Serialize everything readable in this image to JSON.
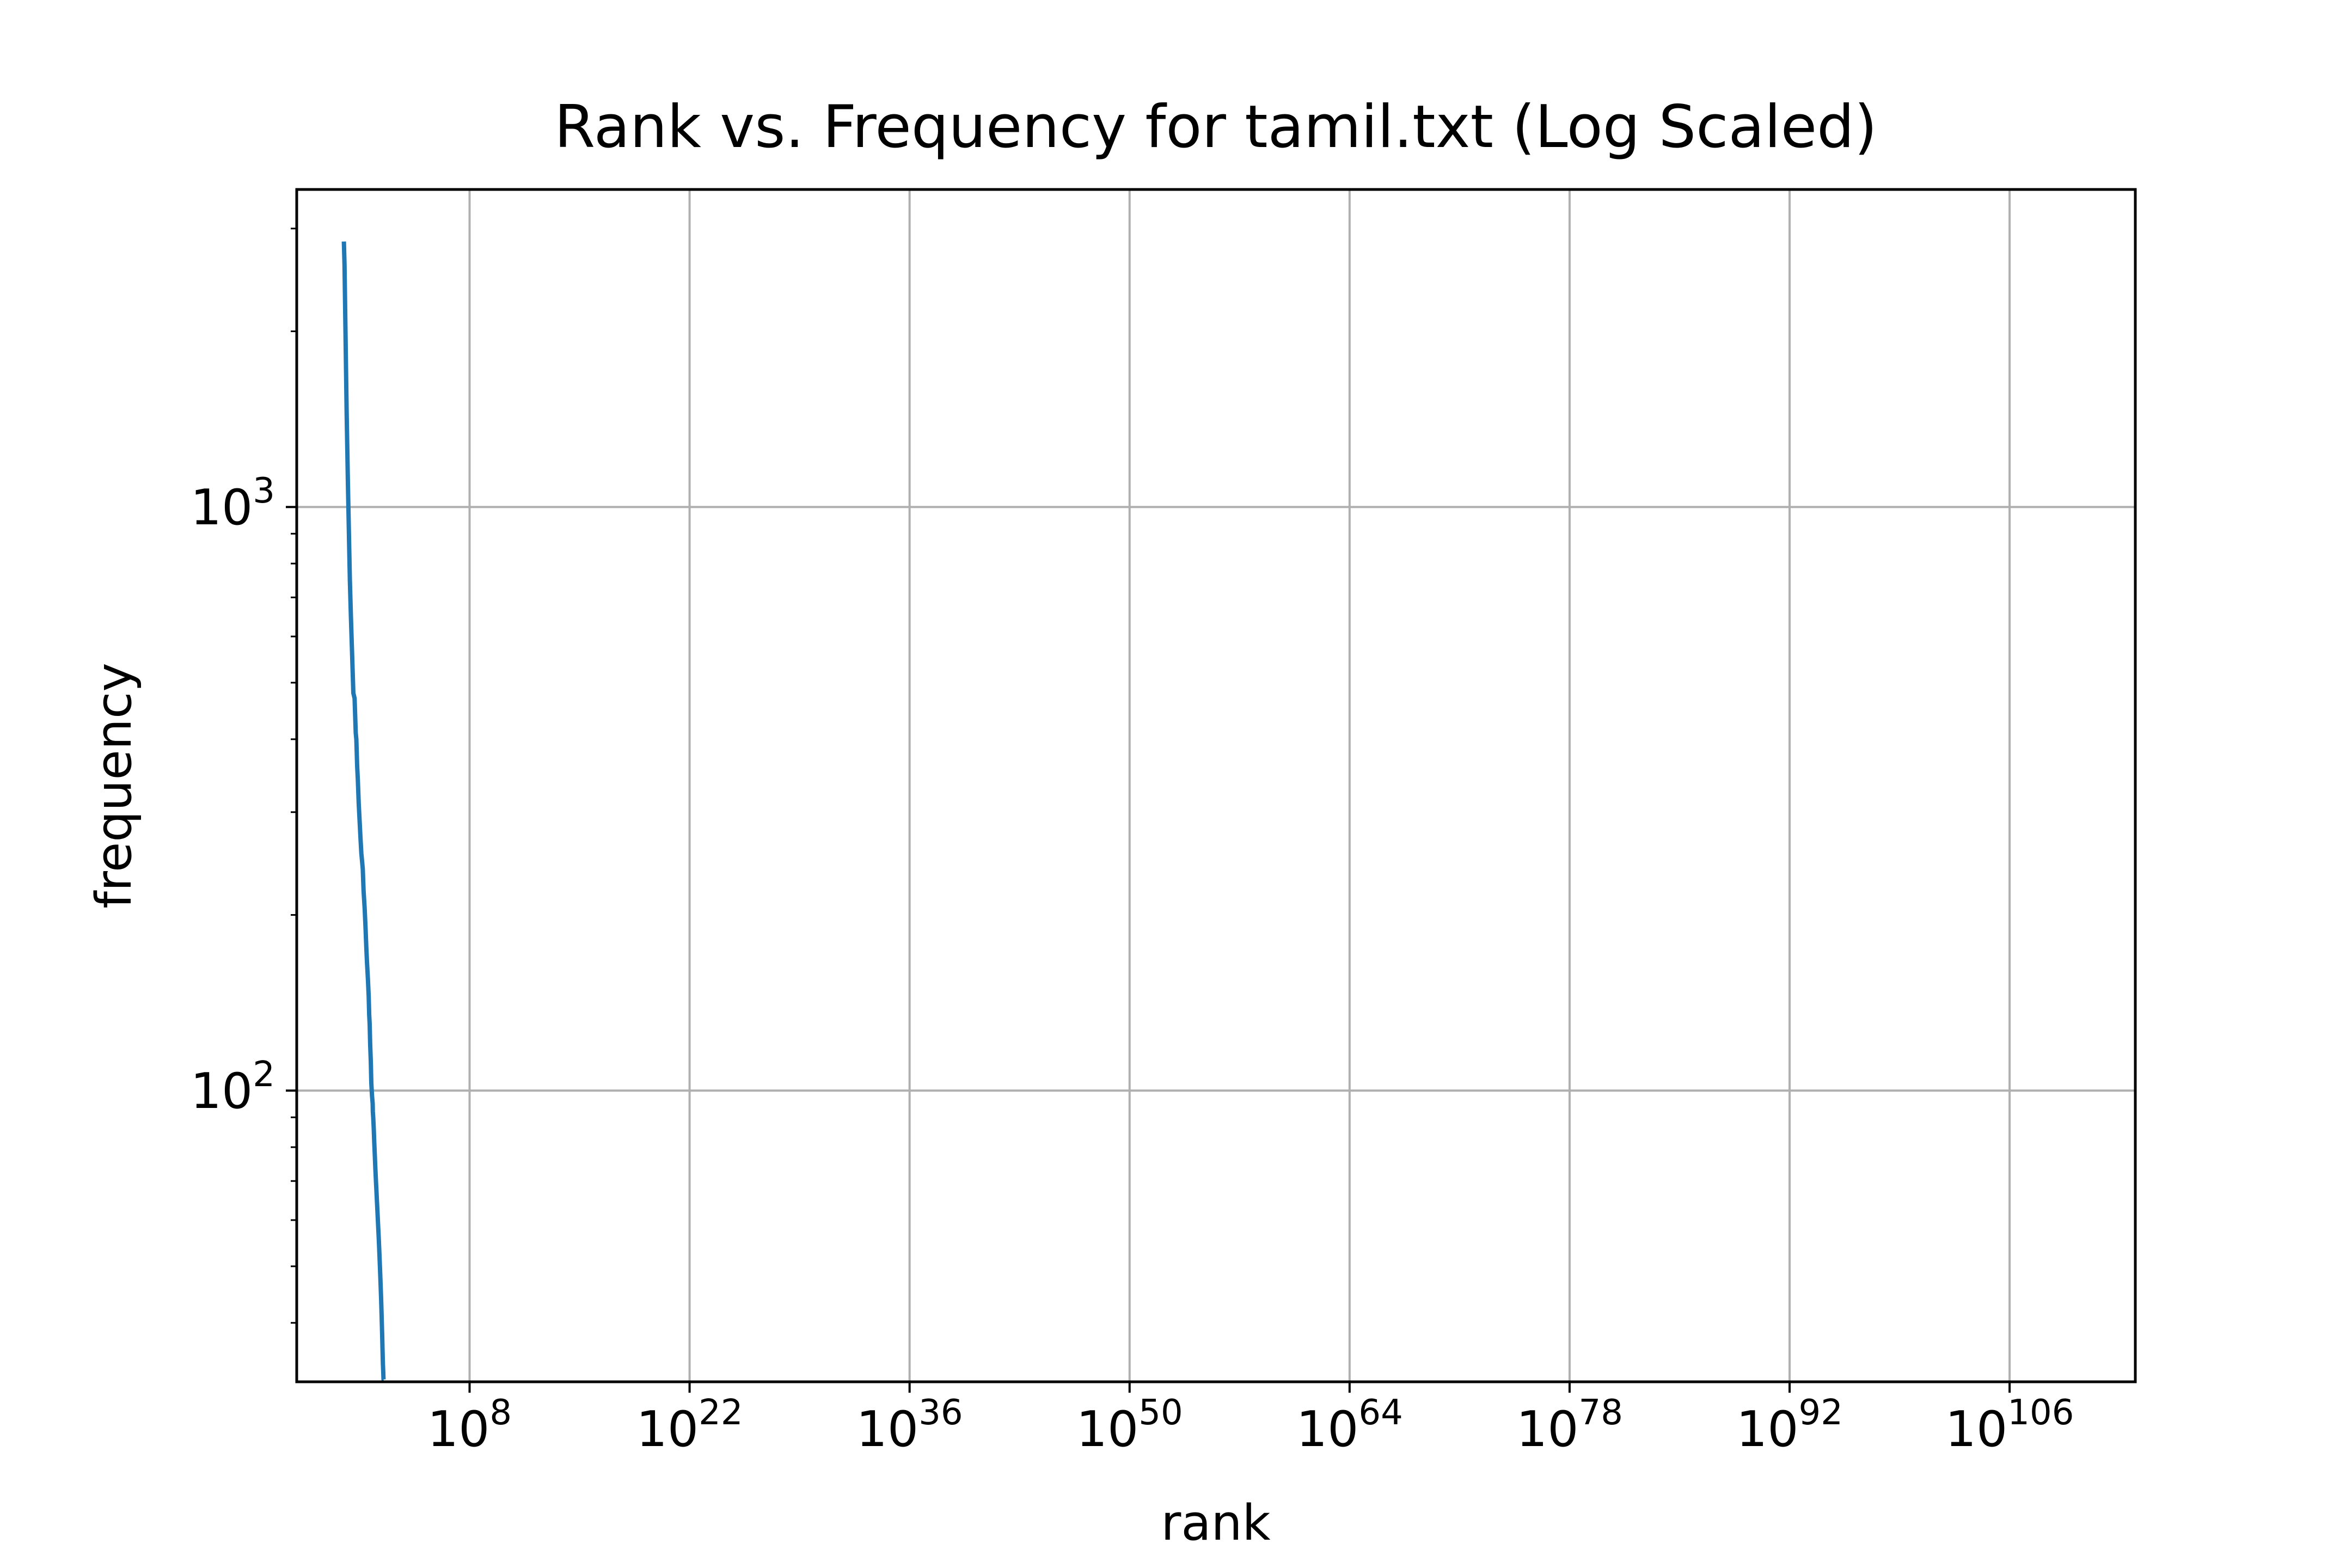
{
  "chart_data": {
    "type": "line",
    "title": "Rank vs. Frequency for tamil.txt (Log Scaled)",
    "xlabel": "rank",
    "ylabel": "frequency",
    "x_scale": "log",
    "y_scale": "log",
    "xlim": [
      0.001,
      1e+114
    ],
    "ylim": [
      31.7,
      3500
    ],
    "grid": true,
    "x_ticks": [
      {
        "value": 100000000.0,
        "base": "10",
        "exp": "8"
      },
      {
        "value": 1e+22,
        "base": "10",
        "exp": "22"
      },
      {
        "value": 1e+36,
        "base": "10",
        "exp": "36"
      },
      {
        "value": 1e+50,
        "base": "10",
        "exp": "50"
      },
      {
        "value": 1e+64,
        "base": "10",
        "exp": "64"
      },
      {
        "value": 1e+78,
        "base": "10",
        "exp": "78"
      },
      {
        "value": 1e+92,
        "base": "10",
        "exp": "92"
      },
      {
        "value": 1e+106,
        "base": "10",
        "exp": "106"
      }
    ],
    "y_ticks": [
      {
        "value": 100,
        "base": "10",
        "exp": "2"
      },
      {
        "value": 1000,
        "base": "10",
        "exp": "3"
      }
    ],
    "series": [
      {
        "color": "#1f77b4",
        "points": [
          [
            1,
            2850
          ],
          [
            1.1,
            2600
          ],
          [
            1.5,
            1450
          ],
          [
            1.8,
            1100
          ],
          [
            2.4,
            750
          ],
          [
            2.8,
            650
          ],
          [
            4,
            480
          ],
          [
            4.8,
            470
          ],
          [
            5.7,
            410
          ],
          [
            6.2,
            400
          ],
          [
            7,
            360
          ],
          [
            7.8,
            340
          ],
          [
            8.8,
            310
          ],
          [
            10,
            290
          ],
          [
            11.5,
            270
          ],
          [
            13,
            255
          ],
          [
            16,
            240
          ],
          [
            18,
            220
          ],
          [
            21,
            205
          ],
          [
            24,
            190
          ],
          [
            27,
            175
          ],
          [
            30,
            165
          ],
          [
            34,
            155
          ],
          [
            38,
            145
          ],
          [
            41,
            135
          ],
          [
            44,
            130
          ],
          [
            47,
            120
          ],
          [
            52,
            112
          ],
          [
            56,
            103
          ],
          [
            62,
            98
          ],
          [
            68,
            95
          ],
          [
            70,
            92
          ],
          [
            74,
            90
          ],
          [
            80,
            86
          ],
          [
            85,
            82
          ],
          [
            92,
            78
          ],
          [
            100,
            74
          ],
          [
            110,
            70
          ],
          [
            116,
            68
          ],
          [
            126,
            65
          ],
          [
            137,
            62
          ],
          [
            150,
            59
          ],
          [
            165,
            56
          ],
          [
            180,
            53
          ],
          [
            197,
            50
          ],
          [
            215,
            47
          ],
          [
            235,
            44
          ],
          [
            253,
            41
          ],
          [
            261,
            40
          ],
          [
            275,
            38
          ],
          [
            288,
            36
          ],
          [
            304,
            34
          ],
          [
            320,
            33
          ],
          [
            332,
            32
          ],
          [
            340,
            32
          ]
        ]
      }
    ]
  }
}
